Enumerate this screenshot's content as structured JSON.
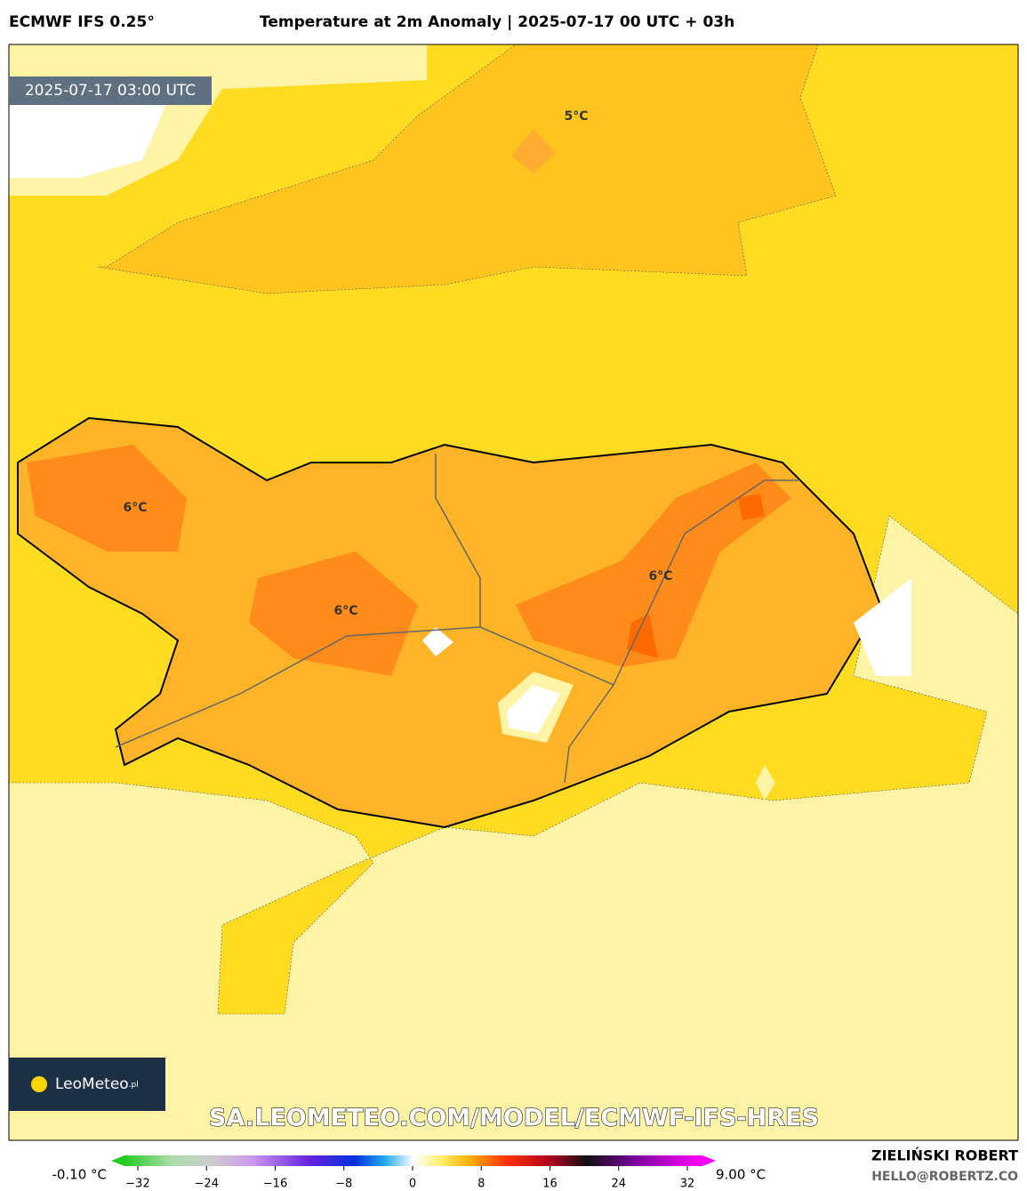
{
  "header": {
    "model": "ECMWF IFS 0.25°",
    "title": "Temperature at 2m Anomaly | 2025-07-17 00 UTC + 03h"
  },
  "map": {
    "valid_time": "2025-07-17 03:00 UTC",
    "contour_labels": [
      "5°C",
      "6°C",
      "6°C",
      "6°C"
    ],
    "logo": "LeoMeteo",
    "logo_suffix": ".pl",
    "url": "SA.LEOMETEO.COM/MODEL/ECMWF-IFS-HRES"
  },
  "colorbar": {
    "min_label": "-0.10 °C",
    "max_label": "9.00 °C",
    "xlim": [
      -32,
      32
    ],
    "ticks": [
      {
        "value": -32,
        "label": "−32"
      },
      {
        "value": -24,
        "label": "−24"
      },
      {
        "value": -16,
        "label": "−16"
      },
      {
        "value": -8,
        "label": "−8"
      },
      0,
      8,
      16,
      24,
      32
    ]
  },
  "footer": {
    "author": "ZIELIŃSKI ROBERT",
    "email": "HELLO@ROBERTZ.CO"
  }
}
